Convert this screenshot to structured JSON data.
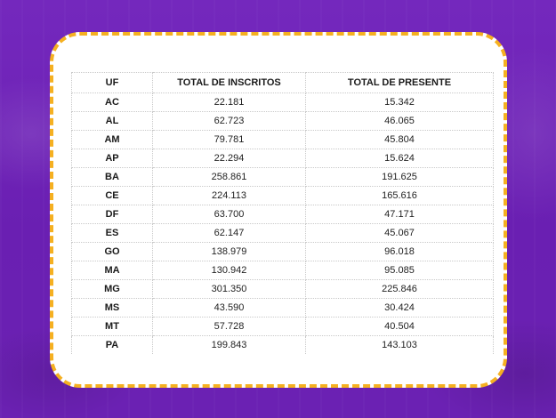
{
  "table": {
    "headers": [
      "UF",
      "TOTAL DE INSCRITOS",
      "TOTAL DE PRESENTE"
    ],
    "rows": [
      [
        "AC",
        "22.181",
        "15.342"
      ],
      [
        "AL",
        "62.723",
        "46.065"
      ],
      [
        "AM",
        "79.781",
        "45.804"
      ],
      [
        "AP",
        "22.294",
        "15.624"
      ],
      [
        "BA",
        "258.861",
        "191.625"
      ],
      [
        "CE",
        "224.113",
        "165.616"
      ],
      [
        "DF",
        "63.700",
        "47.171"
      ],
      [
        "ES",
        "62.147",
        "45.067"
      ],
      [
        "GO",
        "138.979",
        "96.018"
      ],
      [
        "MA",
        "130.942",
        "95.085"
      ],
      [
        "MG",
        "301.350",
        "225.846"
      ],
      [
        "MS",
        "43.590",
        "30.424"
      ],
      [
        "MT",
        "57.728",
        "40.504"
      ],
      [
        "PA",
        "199.843",
        "143.103"
      ]
    ]
  },
  "colors": {
    "background": "#6e22b6",
    "frame_border": "#f5b021",
    "card": "#ffffff"
  }
}
